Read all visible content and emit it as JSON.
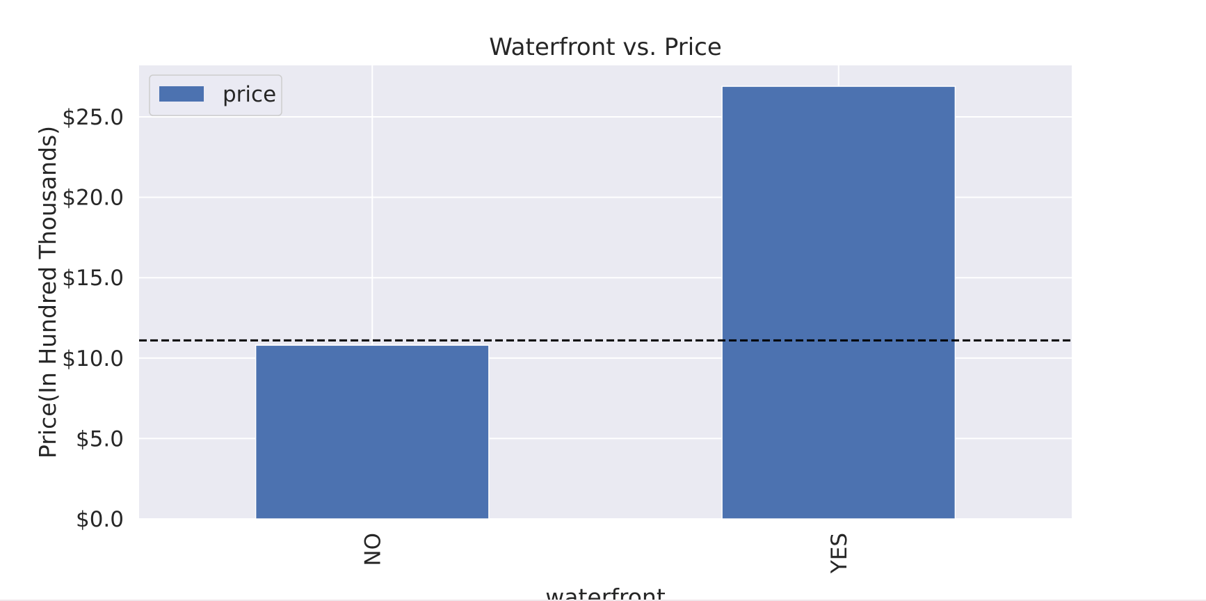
{
  "chart_data": {
    "type": "bar",
    "title": "Waterfront vs. Price",
    "xlabel": "waterfront",
    "ylabel": "Price(In Hundred Thousands)",
    "categories": [
      "NO",
      "YES"
    ],
    "series": [
      {
        "name": "price",
        "values": [
          10.8,
          26.9
        ]
      }
    ],
    "ylim": [
      0,
      28.2
    ],
    "yticks": [
      0,
      5,
      10,
      15,
      20,
      25
    ],
    "ytick_labels": [
      "$0.0",
      "$5.0",
      "$10.0",
      "$15.0",
      "$20.0",
      "$25.0"
    ],
    "reference_line": {
      "y": 11.1,
      "style": "dashed",
      "color": "#000000"
    },
    "legend": {
      "position": "top-left",
      "entries": [
        "price"
      ]
    },
    "grid": true,
    "colors": {
      "bar": "#4c72b0",
      "plot_background": "#eaeaf2",
      "grid": "#ffffff",
      "text": "#262626"
    }
  }
}
